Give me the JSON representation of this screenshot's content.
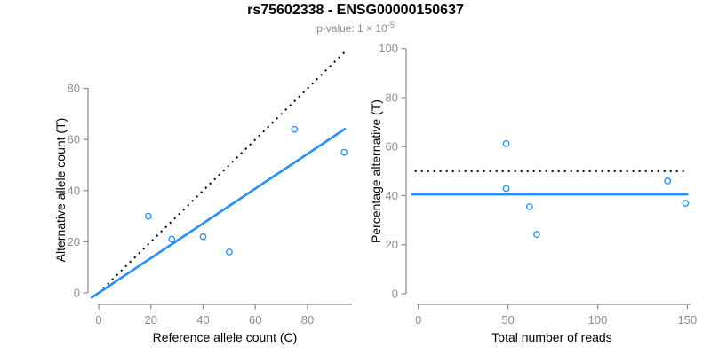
{
  "header": {
    "title": "rs75602338 - ENSG00000150637",
    "pvalue_text": "p-value: 1 × 10",
    "pvalue_exponent": "-5"
  },
  "colors": {
    "accent_blue": "#1E90FF",
    "axis_gray": "#8a8a8a",
    "tick_label_gray": "#8c8c8c",
    "line_black": "#000000",
    "title_black": "#000000",
    "background": "#ffffff"
  },
  "chart_data": [
    {
      "type": "scatter",
      "name": "allele-counts",
      "xlabel": "Reference allele count (C)",
      "ylabel": "Alternative allele count (T)",
      "xticks": [
        0,
        20,
        40,
        60,
        80
      ],
      "yticks": [
        0,
        20,
        40,
        60,
        80
      ],
      "xlim": [
        0,
        97
      ],
      "ylim": [
        0,
        96
      ],
      "grid": false,
      "points": [
        [
          19,
          30
        ],
        [
          28,
          21
        ],
        [
          40,
          22
        ],
        [
          50,
          16
        ],
        [
          75,
          64
        ],
        [
          94,
          55
        ]
      ],
      "lines": [
        {
          "name": "identity",
          "style": "dotted",
          "color": "#000000",
          "slope": 1,
          "intercept": 0
        },
        {
          "name": "fit",
          "style": "solid",
          "color": "#1E90FF",
          "slope": 0.68,
          "intercept": 0
        }
      ]
    },
    {
      "type": "scatter",
      "name": "percentage-alternative",
      "xlabel": "Total number of reads",
      "ylabel": "Percentage alternative (T)",
      "xticks": [
        0,
        50,
        100,
        150
      ],
      "yticks": [
        0,
        20,
        40,
        60,
        80,
        100
      ],
      "xlim": [
        0,
        153
      ],
      "ylim": [
        0,
        100
      ],
      "grid": false,
      "points": [
        [
          49,
          61.2
        ],
        [
          49,
          42.9
        ],
        [
          62,
          35.5
        ],
        [
          66,
          24.2
        ],
        [
          139,
          46.0
        ],
        [
          149,
          36.9
        ]
      ],
      "lines": [
        {
          "name": "expected-50pct",
          "style": "dotted",
          "color": "#000000",
          "y": 50
        },
        {
          "name": "fitted-mean",
          "style": "solid",
          "color": "#1E90FF",
          "y": 40.5
        }
      ]
    }
  ]
}
